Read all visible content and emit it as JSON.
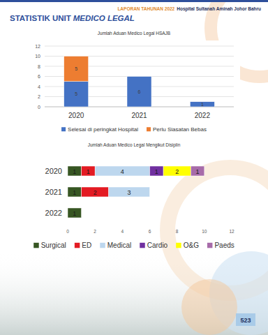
{
  "header": {
    "report": "LAPORAN TAHUNAN 2022",
    "hospital": "Hospital Sultanah Aminah Johor Bahru"
  },
  "title": {
    "prefix": "STATISTIK UNIT",
    "italic": "MEDICO LEGAL"
  },
  "page_number": "523",
  "chart_data": [
    {
      "type": "bar",
      "title": "Jumlah Aduan Medico Legal HSAJB",
      "categories": [
        "2020",
        "2021",
        "2022"
      ],
      "series": [
        {
          "name": "Selesai di peringkat Hospital",
          "color": "#4472c4",
          "values": [
            5,
            6,
            1
          ]
        },
        {
          "name": "Perlu Siasatan Bebas",
          "color": "#ed7d31",
          "values": [
            5,
            null,
            null
          ]
        }
      ],
      "stacked": true,
      "data_labels": true,
      "ylim": [
        0,
        12
      ],
      "yticks": [
        0,
        2,
        4,
        6,
        8,
        10,
        12
      ],
      "grid": true,
      "legend": "bottom"
    },
    {
      "type": "bar",
      "orientation": "horizontal",
      "title": "Jumlah Aduan Medico Legal Mengikut Disiplin",
      "categories": [
        "2020",
        "2021",
        "2022"
      ],
      "series": [
        {
          "name": "Surgical",
          "color": "#375623",
          "values": [
            1,
            1,
            1
          ]
        },
        {
          "name": "ED",
          "color": "#e31b23",
          "values": [
            1,
            2,
            null
          ]
        },
        {
          "name": "Medical",
          "color": "#bdd7ee",
          "values": [
            4,
            3,
            null
          ]
        },
        {
          "name": "Cardio",
          "color": "#7030a0",
          "values": [
            1,
            null,
            null
          ]
        },
        {
          "name": "O&G",
          "color": "#ffff00",
          "values": [
            2,
            null,
            null
          ]
        },
        {
          "name": "Paeds",
          "color": "#a76ba9",
          "values": [
            1,
            null,
            null
          ]
        }
      ],
      "stacked": true,
      "data_labels": true,
      "xlim": [
        0,
        12
      ],
      "xticks": [
        0,
        2,
        4,
        6,
        8,
        10,
        12
      ],
      "grid": false,
      "legend": "bottom"
    }
  ]
}
